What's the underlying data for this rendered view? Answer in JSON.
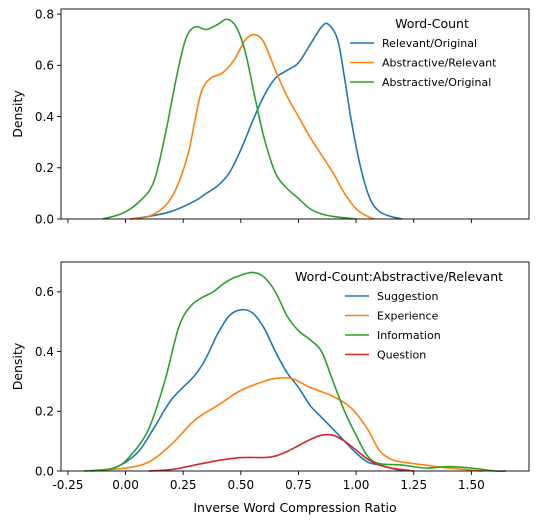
{
  "chart_data": [
    {
      "type": "line",
      "panel": "top",
      "xlabel": "",
      "ylabel": "Density",
      "xlim": [
        -0.28,
        1.75
      ],
      "ylim": [
        0,
        0.82
      ],
      "yticks": [
        0.0,
        0.2,
        0.4,
        0.6,
        0.8
      ],
      "ytick_labels": [
        "0.0",
        "0.2",
        "0.4",
        "0.6",
        "0.8"
      ],
      "xticks": [
        -0.25,
        0.0,
        0.25,
        0.5,
        0.75,
        1.0,
        1.25,
        1.5
      ],
      "show_xtick_labels": false,
      "grid": false,
      "legend": {
        "title": "Word-Count",
        "placement": "top-right",
        "entries": [
          "Relevant/Original",
          "Abstractive/Relevant",
          "Abstractive/Original"
        ]
      },
      "series": [
        {
          "name": "Relevant/Original",
          "color": "#1f77b4",
          "points": [
            [
              0.02,
              0.0
            ],
            [
              0.1,
              0.01
            ],
            [
              0.2,
              0.03
            ],
            [
              0.3,
              0.07
            ],
            [
              0.35,
              0.1
            ],
            [
              0.4,
              0.13
            ],
            [
              0.45,
              0.18
            ],
            [
              0.5,
              0.27
            ],
            [
              0.55,
              0.38
            ],
            [
              0.6,
              0.48
            ],
            [
              0.65,
              0.55
            ],
            [
              0.7,
              0.58
            ],
            [
              0.75,
              0.61
            ],
            [
              0.8,
              0.68
            ],
            [
              0.85,
              0.75
            ],
            [
              0.88,
              0.76
            ],
            [
              0.92,
              0.7
            ],
            [
              0.95,
              0.55
            ],
            [
              0.98,
              0.38
            ],
            [
              1.02,
              0.2
            ],
            [
              1.06,
              0.08
            ],
            [
              1.1,
              0.03
            ],
            [
              1.15,
              0.01
            ],
            [
              1.2,
              0.0
            ]
          ]
        },
        {
          "name": "Abstractive/Relevant",
          "color": "#ff7f0e",
          "points": [
            [
              0.02,
              0.0
            ],
            [
              0.1,
              0.01
            ],
            [
              0.17,
              0.05
            ],
            [
              0.22,
              0.12
            ],
            [
              0.27,
              0.25
            ],
            [
              0.3,
              0.38
            ],
            [
              0.33,
              0.5
            ],
            [
              0.37,
              0.55
            ],
            [
              0.42,
              0.57
            ],
            [
              0.47,
              0.62
            ],
            [
              0.52,
              0.7
            ],
            [
              0.56,
              0.72
            ],
            [
              0.6,
              0.69
            ],
            [
              0.65,
              0.58
            ],
            [
              0.7,
              0.48
            ],
            [
              0.75,
              0.4
            ],
            [
              0.8,
              0.32
            ],
            [
              0.85,
              0.25
            ],
            [
              0.9,
              0.18
            ],
            [
              0.95,
              0.1
            ],
            [
              1.0,
              0.04
            ],
            [
              1.05,
              0.01
            ],
            [
              1.08,
              0.0
            ]
          ]
        },
        {
          "name": "Abstractive/Original",
          "color": "#2ca02c",
          "points": [
            [
              -0.1,
              0.0
            ],
            [
              -0.02,
              0.02
            ],
            [
              0.05,
              0.06
            ],
            [
              0.12,
              0.14
            ],
            [
              0.17,
              0.32
            ],
            [
              0.22,
              0.55
            ],
            [
              0.26,
              0.7
            ],
            [
              0.3,
              0.75
            ],
            [
              0.35,
              0.74
            ],
            [
              0.4,
              0.76
            ],
            [
              0.44,
              0.78
            ],
            [
              0.48,
              0.75
            ],
            [
              0.52,
              0.65
            ],
            [
              0.56,
              0.48
            ],
            [
              0.6,
              0.32
            ],
            [
              0.65,
              0.18
            ],
            [
              0.7,
              0.12
            ],
            [
              0.75,
              0.08
            ],
            [
              0.8,
              0.04
            ],
            [
              0.85,
              0.02
            ],
            [
              0.9,
              0.01
            ],
            [
              1.0,
              0.0
            ]
          ]
        }
      ]
    },
    {
      "type": "line",
      "panel": "bottom",
      "xlabel": "Inverse Word Compression Ratio",
      "ylabel": "Density",
      "xlim": [
        -0.28,
        1.75
      ],
      "ylim": [
        0,
        0.7
      ],
      "yticks": [
        0.0,
        0.2,
        0.4,
        0.6
      ],
      "ytick_labels": [
        "0.0",
        "0.2",
        "0.4",
        "0.6"
      ],
      "xticks": [
        -0.25,
        0.0,
        0.25,
        0.5,
        0.75,
        1.0,
        1.25,
        1.5
      ],
      "xtick_labels": [
        "-0.25",
        "0.00",
        "0.25",
        "0.50",
        "0.75",
        "1.00",
        "1.25",
        "1.50"
      ],
      "grid": false,
      "legend": {
        "title": "Word-Count:Abstractive/Relevant",
        "placement": "top-right",
        "entries": [
          "Suggestion",
          "Experience",
          "Information",
          "Question"
        ]
      },
      "series": [
        {
          "name": "Suggestion",
          "color": "#1f77b4",
          "points": [
            [
              -0.15,
              0.0
            ],
            [
              -0.05,
              0.01
            ],
            [
              0.05,
              0.06
            ],
            [
              0.12,
              0.14
            ],
            [
              0.2,
              0.24
            ],
            [
              0.3,
              0.32
            ],
            [
              0.35,
              0.38
            ],
            [
              0.4,
              0.46
            ],
            [
              0.45,
              0.52
            ],
            [
              0.5,
              0.54
            ],
            [
              0.55,
              0.53
            ],
            [
              0.6,
              0.48
            ],
            [
              0.65,
              0.4
            ],
            [
              0.7,
              0.33
            ],
            [
              0.75,
              0.28
            ],
            [
              0.8,
              0.22
            ],
            [
              0.85,
              0.18
            ],
            [
              0.9,
              0.14
            ],
            [
              0.95,
              0.1
            ],
            [
              1.0,
              0.06
            ],
            [
              1.05,
              0.03
            ],
            [
              1.1,
              0.02
            ],
            [
              1.15,
              0.01
            ],
            [
              1.2,
              0.0
            ]
          ]
        },
        {
          "name": "Experience",
          "color": "#ff7f0e",
          "points": [
            [
              -0.15,
              0.0
            ],
            [
              0.0,
              0.01
            ],
            [
              0.1,
              0.03
            ],
            [
              0.2,
              0.09
            ],
            [
              0.3,
              0.17
            ],
            [
              0.4,
              0.22
            ],
            [
              0.5,
              0.27
            ],
            [
              0.6,
              0.3
            ],
            [
              0.65,
              0.31
            ],
            [
              0.72,
              0.31
            ],
            [
              0.8,
              0.28
            ],
            [
              0.9,
              0.25
            ],
            [
              0.98,
              0.21
            ],
            [
              1.05,
              0.14
            ],
            [
              1.1,
              0.07
            ],
            [
              1.15,
              0.04
            ],
            [
              1.2,
              0.03
            ],
            [
              1.3,
              0.02
            ],
            [
              1.4,
              0.01
            ],
            [
              1.55,
              0.0
            ]
          ]
        },
        {
          "name": "Information",
          "color": "#2ca02c",
          "points": [
            [
              -0.18,
              0.0
            ],
            [
              -0.05,
              0.01
            ],
            [
              0.02,
              0.05
            ],
            [
              0.1,
              0.14
            ],
            [
              0.17,
              0.3
            ],
            [
              0.23,
              0.48
            ],
            [
              0.28,
              0.55
            ],
            [
              0.33,
              0.58
            ],
            [
              0.38,
              0.6
            ],
            [
              0.43,
              0.63
            ],
            [
              0.48,
              0.65
            ],
            [
              0.55,
              0.665
            ],
            [
              0.6,
              0.65
            ],
            [
              0.65,
              0.6
            ],
            [
              0.7,
              0.52
            ],
            [
              0.75,
              0.47
            ],
            [
              0.8,
              0.44
            ],
            [
              0.85,
              0.4
            ],
            [
              0.9,
              0.3
            ],
            [
              0.95,
              0.2
            ],
            [
              1.0,
              0.12
            ],
            [
              1.05,
              0.05
            ],
            [
              1.1,
              0.025
            ],
            [
              1.2,
              0.02
            ],
            [
              1.3,
              0.01
            ],
            [
              1.4,
              0.015
            ],
            [
              1.5,
              0.01
            ],
            [
              1.6,
              0.0
            ],
            [
              1.65,
              0.0
            ]
          ]
        },
        {
          "name": "Question",
          "color": "#d62728",
          "points": [
            [
              0.1,
              0.0
            ],
            [
              0.2,
              0.005
            ],
            [
              0.3,
              0.02
            ],
            [
              0.4,
              0.035
            ],
            [
              0.5,
              0.045
            ],
            [
              0.6,
              0.045
            ],
            [
              0.65,
              0.05
            ],
            [
              0.7,
              0.065
            ],
            [
              0.75,
              0.085
            ],
            [
              0.8,
              0.105
            ],
            [
              0.85,
              0.12
            ],
            [
              0.9,
              0.12
            ],
            [
              0.95,
              0.1
            ],
            [
              1.0,
              0.07
            ],
            [
              1.05,
              0.04
            ],
            [
              1.1,
              0.02
            ],
            [
              1.15,
              0.01
            ],
            [
              1.25,
              0.0
            ]
          ]
        }
      ]
    }
  ]
}
